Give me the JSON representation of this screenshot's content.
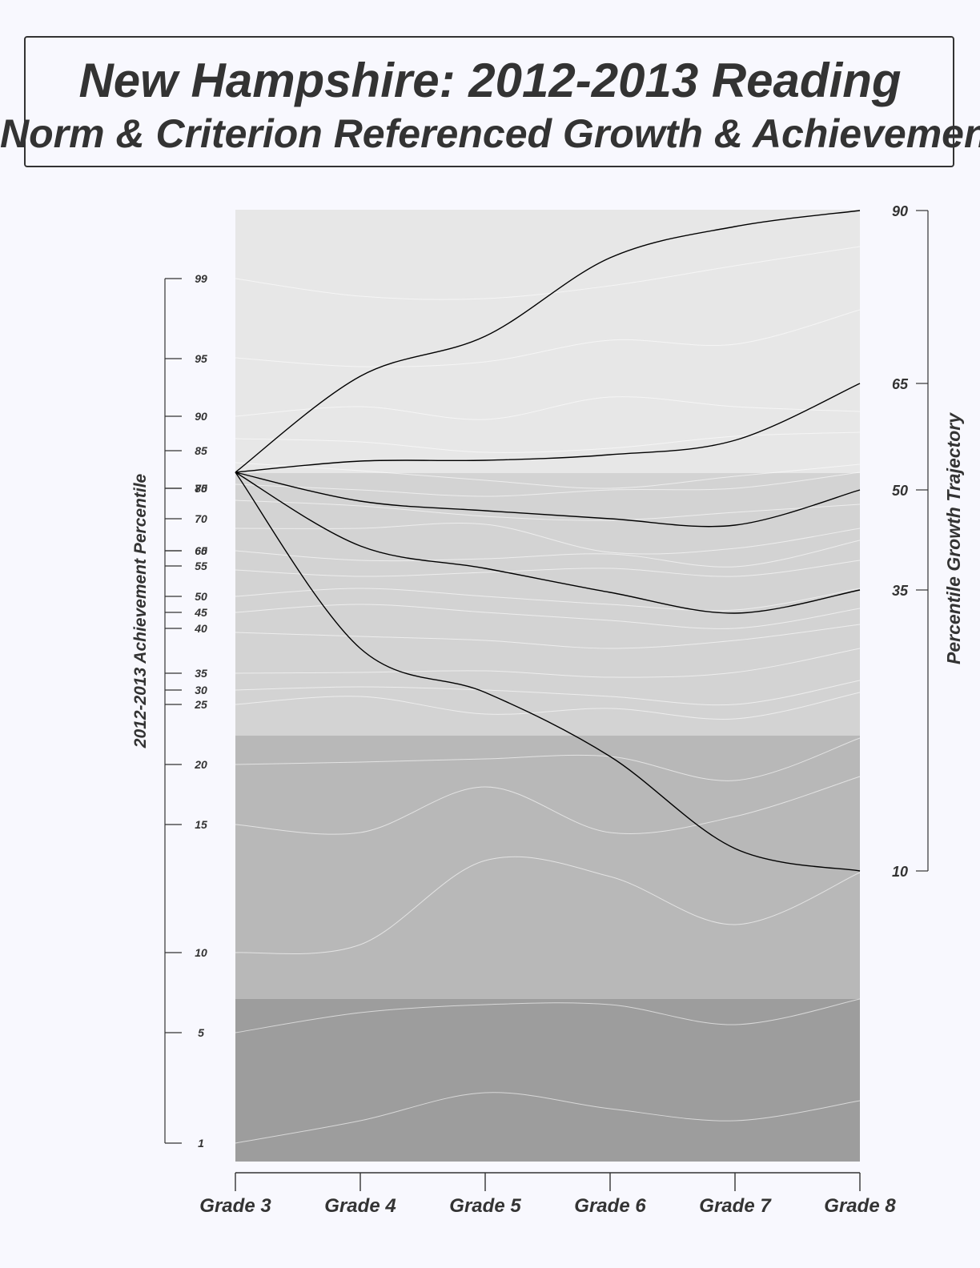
{
  "title": {
    "line1": "New Hampshire: 2012-2013 Reading",
    "line2": "Norm & Criterion Referenced Growth & Achievement"
  },
  "chart_data": {
    "type": "line",
    "x": [
      "Grade 3",
      "Grade 4",
      "Grade 5",
      "Grade 6",
      "Grade 7",
      "Grade 8"
    ],
    "left_axis": {
      "label": "2012-2013 Achievement Percentile",
      "ticks": [
        "1",
        "5",
        "10",
        "15",
        "20",
        "25",
        "30",
        "35",
        "40",
        "45",
        "50",
        "55",
        "60",
        "65",
        "70",
        "75",
        "80",
        "85",
        "90",
        "95",
        "99"
      ]
    },
    "right_axis": {
      "label": "Percentile Growth Trajectory",
      "ticks": [
        "10",
        "35",
        "50",
        "65",
        "90"
      ]
    },
    "colors": {
      "band_top": "#e7e7e7",
      "band_upper_mid": "#d3d3d3",
      "band_lower_mid": "#b8b8b8",
      "band_bottom": "#9d9d9d",
      "percentile_lines": "#ffffff",
      "trajectory_lines": "#000000",
      "axis": "#333333"
    },
    "growth_trajectories": [
      {
        "percentile": 90
      },
      {
        "percentile": 65
      },
      {
        "percentile": 50
      },
      {
        "percentile": 35
      },
      {
        "percentile": 10
      }
    ]
  }
}
